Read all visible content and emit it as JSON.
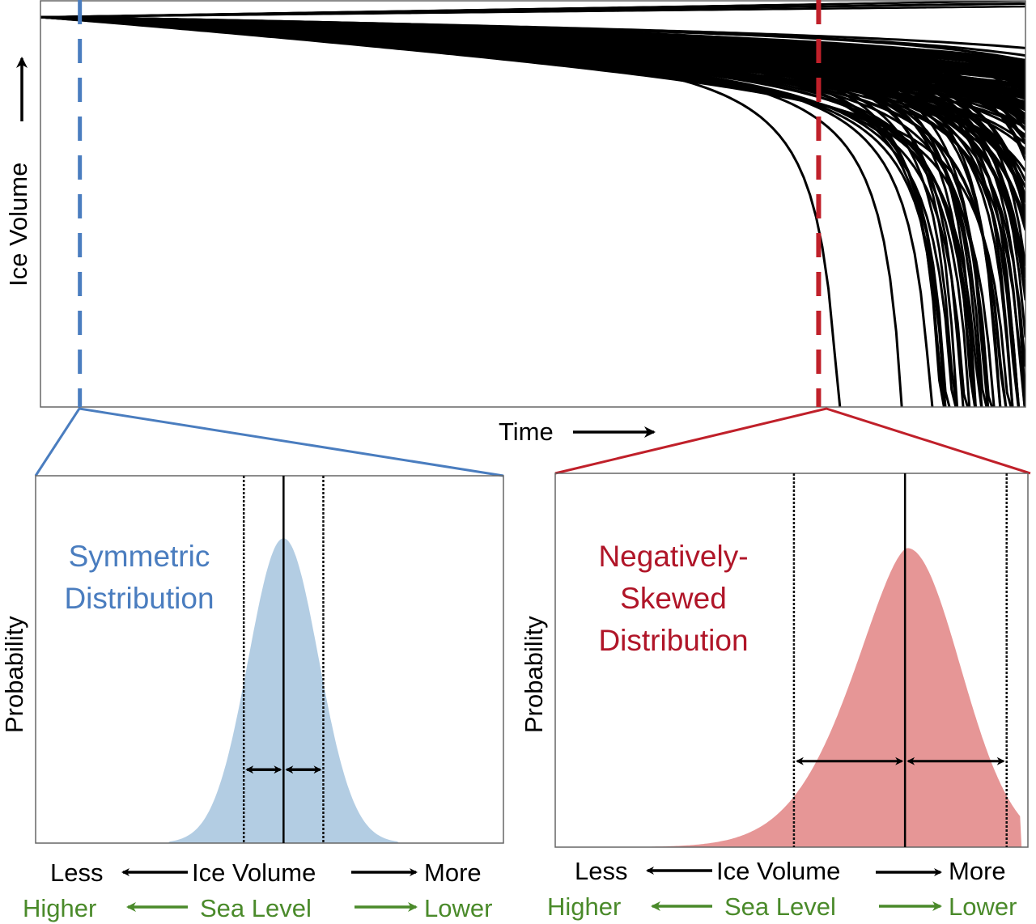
{
  "colors": {
    "blue": "#4a7dbf",
    "blue_fill": "#b3cde3",
    "red": "#c0202a",
    "red_fill": "#e69696",
    "green": "#4a8a2a",
    "black": "#000000",
    "frame": "#666666"
  },
  "chart_data": [
    {
      "id": "ensemble",
      "type": "line",
      "title": "",
      "xlabel": "Time",
      "ylabel": "Ice Volume",
      "xlim": [
        0,
        1
      ],
      "ylim": [
        0,
        1
      ],
      "grid": false,
      "description": "Ensemble of ice-volume trajectories starting from a common initial value and diverging over time; many trajectories collapse rapidly late in time.",
      "start_value": 0.96,
      "n_trajectories_drawn": 160,
      "collapse_times_examples": [
        0.81,
        0.875,
        0.905,
        0.92,
        0.94,
        0.955,
        0.97,
        0.985
      ],
      "markers": [
        {
          "name": "early-time",
          "x": 0.04,
          "color": "blue",
          "style": "dashed"
        },
        {
          "name": "late-time",
          "x": 0.79,
          "color": "red",
          "style": "dashed"
        }
      ]
    },
    {
      "id": "symmetric",
      "type": "area",
      "title": "Symmetric Distribution",
      "xlabel": "Ice Volume",
      "ylabel": "Probability",
      "xlim": [
        0,
        1
      ],
      "ylim": [
        0,
        1
      ],
      "grid": false,
      "distribution": {
        "kind": "normal",
        "mode": 0.53,
        "sigma": 0.075,
        "peak": 0.83
      },
      "median_line_x": 0.53,
      "bound_lines_x": [
        0.445,
        0.615
      ],
      "arrow_height": 0.2
    },
    {
      "id": "skewed",
      "type": "area",
      "title": "Negatively-Skewed Distribution",
      "xlabel": "Ice Volume",
      "ylabel": "Probability",
      "xlim": [
        0,
        1
      ],
      "ylim": [
        0,
        1
      ],
      "grid": false,
      "distribution": {
        "kind": "negatively-skewed",
        "mode": 0.745,
        "sigma_left": 0.14,
        "sigma_right": 0.12,
        "peak": 0.8
      },
      "median_line_x": 0.74,
      "bound_lines_x": [
        0.505,
        0.955
      ],
      "arrow_height": 0.23
    }
  ],
  "labels": {
    "top_ylabel": "Ice Volume",
    "top_xlabel": "Time",
    "left_title_line1": "Symmetric",
    "left_title_line2": "Distribution",
    "right_title_line1": "Negatively-",
    "right_title_line2": "Skewed",
    "right_title_line3": "Distribution",
    "probability": "Probability",
    "less": "Less",
    "ice_volume": "Ice Volume",
    "more": "More",
    "higher": "Higher",
    "sea_level": "Sea Level",
    "lower": "Lower"
  }
}
